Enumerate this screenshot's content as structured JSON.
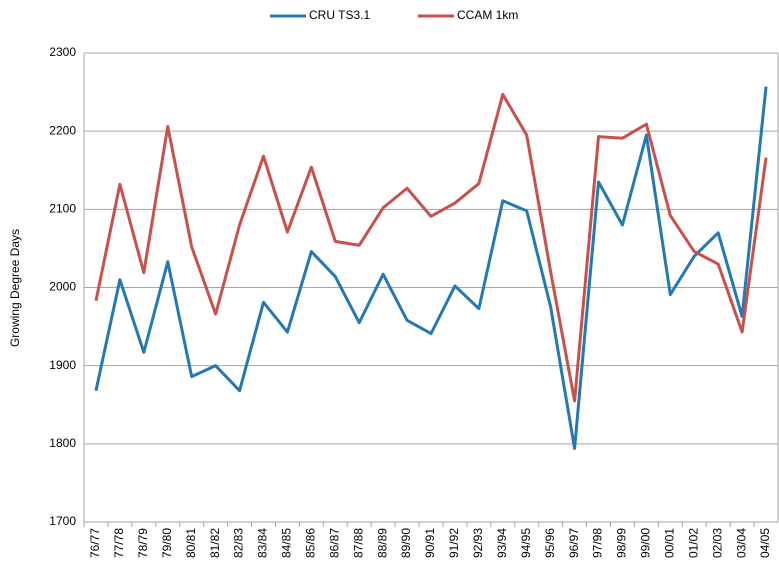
{
  "chart_data": {
    "type": "line",
    "categories": [
      "76/77",
      "77/78",
      "78/79",
      "79/80",
      "80/81",
      "81/82",
      "82/83",
      "83/84",
      "84/85",
      "85/86",
      "86/87",
      "87/88",
      "88/89",
      "89/90",
      "90/91",
      "91/92",
      "92/93",
      "93/94",
      "94/95",
      "95/96",
      "96/97",
      "97/98",
      "98/99",
      "99/00",
      "00/01",
      "01/02",
      "02/03",
      "03/04",
      "04/05"
    ],
    "series": [
      {
        "name": "CRU TS3.1",
        "color": "#2478b4",
        "values": [
          1868,
          2010,
          1917,
          2033,
          1886,
          1900,
          1868,
          1981,
          1943,
          2046,
          2014,
          1955,
          2017,
          1958,
          1941,
          2002,
          1973,
          2111,
          2098,
          1975,
          1794,
          2135,
          2080,
          2195,
          1991,
          2040,
          2070,
          1963,
          2257
        ]
      },
      {
        "name": "CCAM 1km",
        "color": "#c8504d",
        "values": [
          1983,
          2132,
          2019,
          2206,
          2052,
          1966,
          2080,
          2168,
          2071,
          2154,
          2059,
          2054,
          2102,
          2127,
          2091,
          2108,
          2133,
          2247,
          2195,
          2020,
          1855,
          2193,
          2191,
          2209,
          2092,
          2046,
          2030,
          1943,
          2166
        ]
      }
    ],
    "y_label": "Growing Degree Days",
    "ylim": [
      1700,
      2300
    ],
    "yticks": [
      1700,
      1800,
      1900,
      2000,
      2100,
      2200,
      2300
    ],
    "grid": true,
    "legend": "top"
  }
}
